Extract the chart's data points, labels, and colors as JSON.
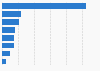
{
  "categories": [
    "",
    "",
    "",
    "",
    "",
    "",
    "",
    ""
  ],
  "values": [
    26100000,
    5900000,
    5400000,
    4200000,
    3800000,
    3700000,
    2400000,
    1300000
  ],
  "bar_color": "#2b7bce",
  "background_color": "#f9f9f9",
  "grid_color": "#cccccc",
  "xlim": [
    0,
    30000000
  ],
  "xtick_values": [
    0,
    5000000,
    10000000,
    15000000,
    20000000,
    25000000,
    30000000
  ]
}
